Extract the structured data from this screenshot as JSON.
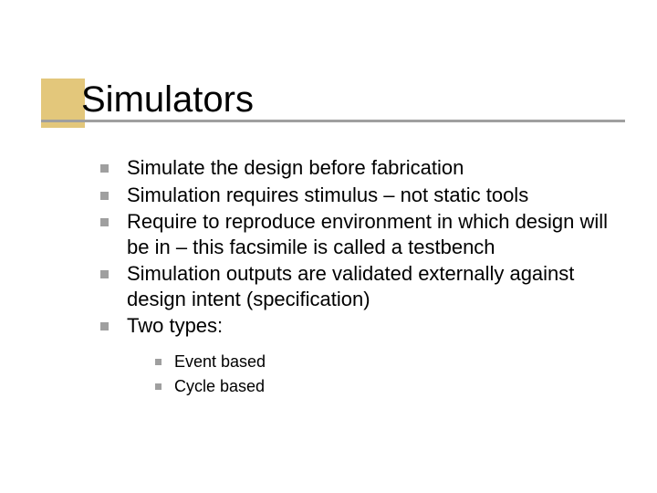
{
  "colors": {
    "background": "#ffffff",
    "title_accent": "#e3c77b",
    "underline": "#9f9f9f",
    "bullet": "#9f9f9f",
    "text": "#000000"
  },
  "typography": {
    "title_fontsize": 40,
    "body_fontsize": 22,
    "sub_fontsize": 18,
    "font_family": "Verdana"
  },
  "title": "Simulators",
  "bullets": [
    "Simulate the design before fabrication",
    "Simulation requires stimulus – not static tools",
    "Require to reproduce environment in which design will be in – this facsimile is called a testbench",
    "Simulation outputs are validated externally against design intent (specification)",
    "Two types:"
  ],
  "sub_bullets": [
    "Event based",
    "Cycle based"
  ]
}
